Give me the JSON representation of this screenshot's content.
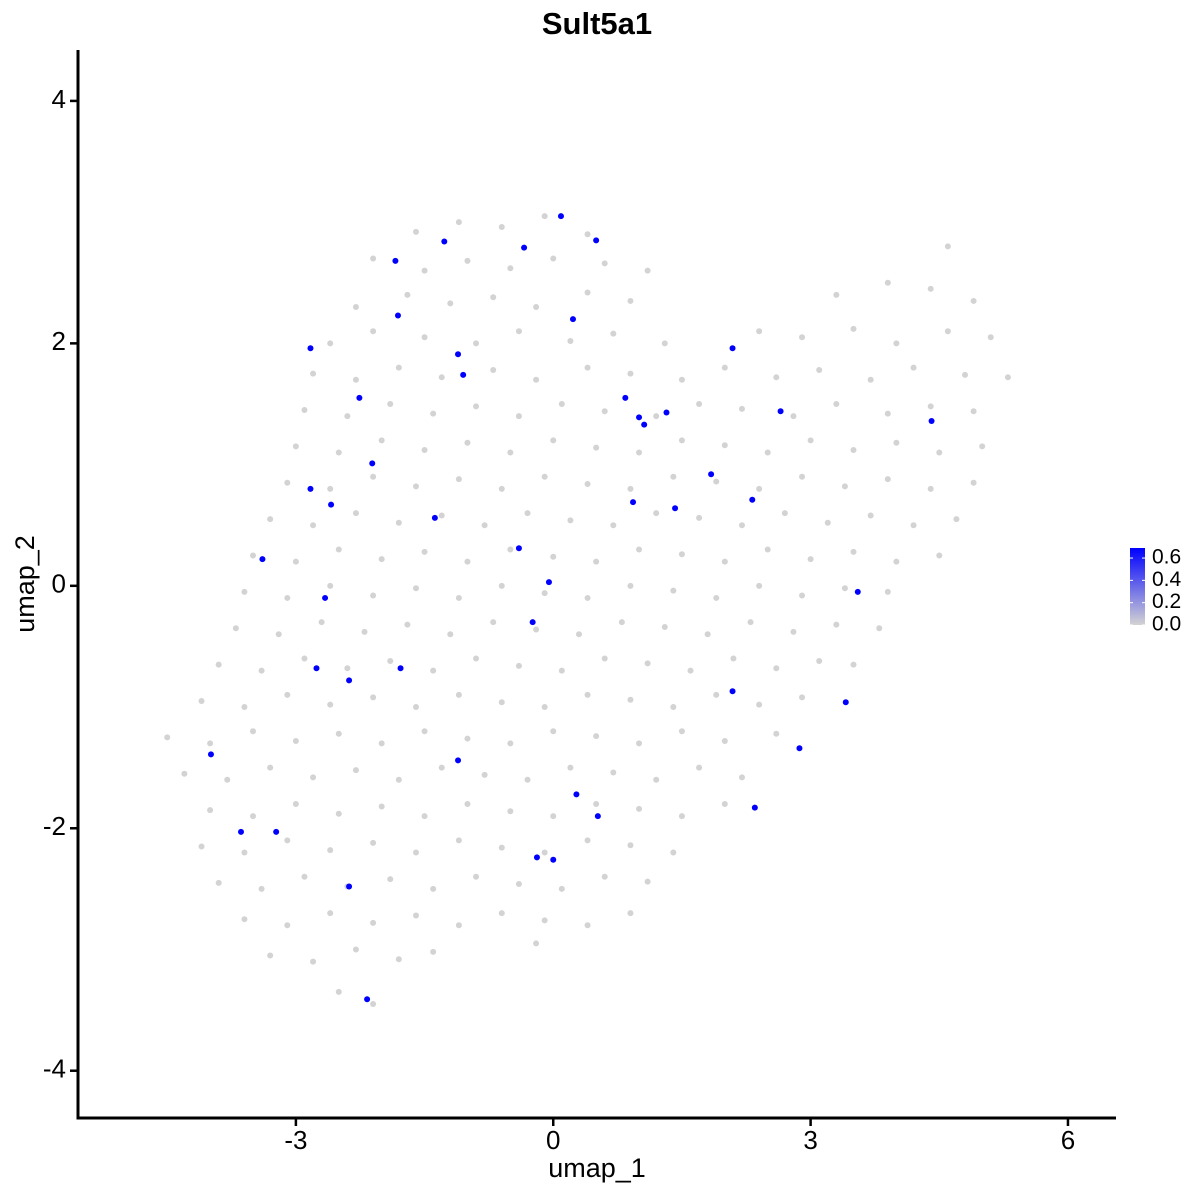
{
  "chart_data": {
    "type": "scatter",
    "title": "Sult5a1",
    "x_label": "umap_1",
    "y_label": "umap_2",
    "xlim": [
      -5.54,
      6.56
    ],
    "ylim": [
      -4.39,
      4.42
    ],
    "xticks": [
      -3,
      0,
      3,
      6
    ],
    "yticks": [
      -4,
      -2,
      0,
      2,
      4
    ],
    "color_low": "#d3d3d3",
    "color_high": "#0000ff",
    "clim": [
      0,
      0.69
    ],
    "cticks": [
      {
        "value": 0,
        "label": "0.0"
      },
      {
        "value": 0.2,
        "label": "0.2"
      },
      {
        "value": 0.4,
        "label": "0.4"
      },
      {
        "value": 0.6,
        "label": "0.6"
      }
    ],
    "x": [
      -1.6,
      -1.1,
      -0.6,
      -0.1,
      0.4,
      -2.1,
      -1.5,
      -1.0,
      -0.5,
      0.0,
      0.6,
      1.1,
      4.6,
      -2.3,
      -1.7,
      -1.2,
      -0.7,
      -0.2,
      0.4,
      0.9,
      3.3,
      3.9,
      4.4,
      4.9,
      -2.6,
      -2.1,
      -1.5,
      -0.9,
      -0.4,
      0.2,
      0.7,
      1.3,
      2.4,
      2.9,
      3.5,
      4.0,
      4.6,
      5.1,
      -2.8,
      -2.3,
      -1.8,
      -1.3,
      -0.7,
      -0.2,
      0.4,
      0.9,
      1.5,
      2.0,
      2.6,
      3.1,
      3.7,
      4.2,
      4.8,
      5.3,
      -2.9,
      -2.4,
      -1.9,
      -1.4,
      -0.9,
      -0.4,
      0.1,
      0.6,
      1.2,
      1.7,
      2.2,
      2.8,
      3.3,
      3.9,
      4.4,
      4.9,
      -3.0,
      -2.5,
      -2.0,
      -1.5,
      -1.0,
      -0.5,
      0.0,
      0.5,
      1.0,
      1.5,
      2.0,
      2.5,
      3.0,
      3.5,
      4.0,
      4.5,
      5.0,
      -3.1,
      -2.6,
      -2.1,
      -1.6,
      -1.1,
      -0.6,
      -0.1,
      0.4,
      0.9,
      1.4,
      1.9,
      2.4,
      2.9,
      3.4,
      3.9,
      4.4,
      4.9,
      -3.3,
      -2.8,
      -2.3,
      -1.8,
      -1.3,
      -0.8,
      -0.3,
      0.2,
      0.7,
      1.2,
      1.7,
      2.2,
      2.7,
      3.2,
      3.7,
      4.2,
      4.7,
      -3.5,
      -3.0,
      -2.5,
      -2.0,
      -1.5,
      -1.0,
      -0.5,
      0.0,
      0.5,
      1.0,
      1.5,
      2.0,
      2.5,
      3.0,
      3.5,
      4.0,
      4.5,
      -3.6,
      -3.1,
      -2.6,
      -2.1,
      -1.6,
      -1.1,
      -0.6,
      -0.1,
      0.4,
      0.9,
      1.4,
      1.9,
      2.4,
      2.9,
      3.4,
      3.9,
      -3.7,
      -3.2,
      -2.7,
      -2.2,
      -1.7,
      -1.2,
      -0.7,
      -0.2,
      0.3,
      0.8,
      1.3,
      1.8,
      2.3,
      2.8,
      3.3,
      3.8,
      -3.9,
      -3.4,
      -2.9,
      -2.4,
      -1.9,
      -1.4,
      -0.9,
      -0.4,
      0.1,
      0.6,
      1.1,
      1.6,
      2.1,
      2.6,
      3.1,
      3.5,
      -4.1,
      -3.6,
      -3.1,
      -2.6,
      -2.1,
      -1.6,
      -1.1,
      -0.6,
      -0.1,
      0.4,
      0.9,
      1.4,
      1.9,
      2.4,
      2.9,
      -4.5,
      -4.0,
      -3.5,
      -3.0,
      -2.5,
      -2.0,
      -1.5,
      -1.0,
      -0.5,
      0.0,
      0.5,
      1.0,
      1.5,
      2.0,
      2.6,
      -4.3,
      -3.8,
      -3.3,
      -2.8,
      -2.3,
      -1.8,
      -1.3,
      -0.8,
      -0.3,
      0.2,
      0.7,
      1.2,
      1.7,
      2.2,
      -4.0,
      -3.5,
      -3.0,
      -2.5,
      -2.0,
      -1.5,
      -1.0,
      -0.5,
      0.0,
      0.5,
      1.0,
      1.5,
      2.0,
      -4.1,
      -3.6,
      -3.1,
      -2.6,
      -2.1,
      -1.6,
      -1.1,
      -0.6,
      -0.1,
      0.4,
      0.9,
      1.4,
      -3.9,
      -3.4,
      -2.9,
      -2.4,
      -1.9,
      -1.4,
      -0.9,
      -0.4,
      0.1,
      0.6,
      1.1,
      -3.6,
      -3.1,
      -2.6,
      -2.1,
      -1.6,
      -1.1,
      -0.6,
      -0.1,
      0.4,
      0.9,
      -3.3,
      -2.8,
      -2.3,
      -1.8,
      -1.4,
      -0.2,
      -2.5,
      -2.1,
      0.09,
      -1.27,
      -0.34,
      0.5,
      -1.84,
      -1.81,
      0.23,
      -2.83,
      -1.11,
      -1.05,
      2.09,
      -2.26,
      0.84,
      1.0,
      1.06,
      1.32,
      2.65,
      4.41,
      -2.11,
      1.84,
      -2.83,
      -2.59,
      0.93,
      1.42,
      2.32,
      -1.38,
      -3.39,
      -0.4,
      -0.05,
      -2.66,
      3.55,
      -0.24,
      -2.76,
      -1.78,
      -2.38,
      2.09,
      3.41,
      -3.99,
      -1.11,
      2.87,
      0.27,
      0.52,
      2.35,
      -3.64,
      -3.23,
      -0.19,
      0.0,
      -2.38,
      -2.17
    ],
    "y": [
      2.92,
      3.0,
      2.96,
      3.05,
      2.9,
      2.7,
      2.6,
      2.68,
      2.62,
      2.7,
      2.66,
      2.6,
      2.8,
      2.3,
      2.4,
      2.33,
      2.38,
      2.3,
      2.42,
      2.35,
      2.4,
      2.5,
      2.45,
      2.35,
      2.0,
      2.1,
      2.05,
      2.0,
      2.1,
      2.02,
      2.08,
      2.0,
      2.1,
      2.05,
      2.12,
      2.0,
      2.1,
      2.05,
      1.75,
      1.7,
      1.8,
      1.72,
      1.78,
      1.7,
      1.8,
      1.75,
      1.7,
      1.8,
      1.72,
      1.78,
      1.7,
      1.8,
      1.74,
      1.72,
      1.45,
      1.4,
      1.5,
      1.42,
      1.48,
      1.4,
      1.5,
      1.44,
      1.4,
      1.5,
      1.46,
      1.4,
      1.5,
      1.42,
      1.48,
      1.44,
      1.15,
      1.1,
      1.2,
      1.12,
      1.18,
      1.1,
      1.2,
      1.14,
      1.1,
      1.2,
      1.16,
      1.1,
      1.2,
      1.12,
      1.18,
      1.1,
      1.15,
      0.85,
      0.8,
      0.9,
      0.82,
      0.88,
      0.8,
      0.9,
      0.84,
      0.8,
      0.9,
      0.86,
      0.8,
      0.9,
      0.82,
      0.88,
      0.8,
      0.85,
      0.55,
      0.5,
      0.6,
      0.52,
      0.58,
      0.5,
      0.6,
      0.54,
      0.5,
      0.6,
      0.56,
      0.5,
      0.6,
      0.52,
      0.58,
      0.5,
      0.55,
      0.25,
      0.2,
      0.3,
      0.22,
      0.28,
      0.2,
      0.3,
      0.24,
      0.2,
      0.3,
      0.26,
      0.2,
      0.3,
      0.22,
      0.28,
      0.2,
      0.25,
      -0.05,
      -0.1,
      0.0,
      -0.08,
      -0.02,
      -0.1,
      0.0,
      -0.06,
      -0.1,
      0.0,
      -0.04,
      -0.1,
      0.0,
      -0.08,
      -0.02,
      -0.05,
      -0.35,
      -0.4,
      -0.3,
      -0.38,
      -0.32,
      -0.4,
      -0.3,
      -0.36,
      -0.4,
      -0.3,
      -0.34,
      -0.4,
      -0.3,
      -0.38,
      -0.32,
      -0.35,
      -0.65,
      -0.7,
      -0.6,
      -0.68,
      -0.62,
      -0.7,
      -0.6,
      -0.66,
      -0.7,
      -0.6,
      -0.64,
      -0.7,
      -0.6,
      -0.68,
      -0.62,
      -0.65,
      -0.95,
      -1.0,
      -0.9,
      -0.98,
      -0.92,
      -1.0,
      -0.9,
      -0.96,
      -1.0,
      -0.9,
      -0.94,
      -1.0,
      -0.9,
      -0.98,
      -0.92,
      -1.25,
      -1.3,
      -1.2,
      -1.28,
      -1.22,
      -1.3,
      -1.2,
      -1.26,
      -1.3,
      -1.2,
      -1.24,
      -1.3,
      -1.2,
      -1.28,
      -1.22,
      -1.55,
      -1.6,
      -1.5,
      -1.58,
      -1.52,
      -1.6,
      -1.5,
      -1.56,
      -1.6,
      -1.5,
      -1.54,
      -1.6,
      -1.5,
      -1.58,
      -1.85,
      -1.9,
      -1.8,
      -1.88,
      -1.82,
      -1.9,
      -1.8,
      -1.86,
      -1.9,
      -1.8,
      -1.84,
      -1.9,
      -1.8,
      -2.15,
      -2.2,
      -2.1,
      -2.18,
      -2.12,
      -2.2,
      -2.1,
      -2.16,
      -2.2,
      -2.1,
      -2.14,
      -2.2,
      -2.45,
      -2.5,
      -2.4,
      -2.48,
      -2.42,
      -2.5,
      -2.4,
      -2.46,
      -2.5,
      -2.4,
      -2.44,
      -2.75,
      -2.8,
      -2.7,
      -2.78,
      -2.72,
      -2.8,
      -2.7,
      -2.76,
      -2.8,
      -2.7,
      -3.05,
      -3.1,
      -3.0,
      -3.08,
      -3.02,
      -2.95,
      -3.35,
      -3.45,
      3.05,
      2.84,
      2.79,
      2.85,
      2.68,
      2.23,
      2.2,
      1.96,
      1.91,
      1.74,
      1.96,
      1.55,
      1.55,
      1.39,
      1.33,
      1.43,
      1.44,
      1.36,
      1.01,
      0.92,
      0.8,
      0.67,
      0.69,
      0.64,
      0.71,
      0.56,
      0.22,
      0.31,
      0.03,
      -0.1,
      -0.05,
      -0.3,
      -0.68,
      -0.68,
      -0.78,
      -0.87,
      -0.96,
      -1.39,
      -1.44,
      -1.34,
      -1.72,
      -1.9,
      -1.83,
      -2.03,
      -2.03,
      -2.24,
      -2.26,
      -2.48,
      -3.41
    ],
    "values": [
      0,
      0,
      0,
      0,
      0,
      0,
      0,
      0,
      0,
      0,
      0,
      0,
      0,
      0,
      0,
      0,
      0,
      0,
      0,
      0,
      0,
      0,
      0,
      0,
      0,
      0,
      0,
      0,
      0,
      0,
      0,
      0,
      0,
      0,
      0,
      0,
      0,
      0,
      0,
      0,
      0,
      0,
      0,
      0,
      0,
      0,
      0,
      0,
      0,
      0,
      0,
      0,
      0,
      0,
      0,
      0,
      0,
      0,
      0,
      0,
      0,
      0,
      0,
      0,
      0,
      0,
      0,
      0,
      0,
      0,
      0,
      0,
      0,
      0,
      0,
      0,
      0,
      0,
      0,
      0,
      0,
      0,
      0,
      0,
      0,
      0,
      0,
      0,
      0,
      0,
      0,
      0,
      0,
      0,
      0,
      0,
      0,
      0,
      0,
      0,
      0,
      0,
      0,
      0,
      0,
      0,
      0,
      0,
      0,
      0,
      0,
      0,
      0,
      0,
      0,
      0,
      0,
      0,
      0,
      0,
      0,
      0,
      0,
      0,
      0,
      0,
      0,
      0,
      0,
      0,
      0,
      0,
      0,
      0,
      0,
      0,
      0,
      0,
      0,
      0,
      0,
      0,
      0,
      0,
      0,
      0,
      0,
      0,
      0,
      0,
      0,
      0,
      0,
      0,
      0,
      0,
      0,
      0,
      0,
      0,
      0,
      0,
      0,
      0,
      0,
      0,
      0,
      0,
      0,
      0,
      0,
      0,
      0,
      0,
      0,
      0,
      0,
      0,
      0,
      0,
      0,
      0,
      0,
      0,
      0,
      0,
      0,
      0,
      0,
      0,
      0,
      0,
      0,
      0,
      0,
      0,
      0,
      0,
      0,
      0,
      0,
      0,
      0,
      0,
      0,
      0,
      0,
      0,
      0,
      0,
      0,
      0,
      0,
      0,
      0,
      0,
      0,
      0,
      0,
      0,
      0,
      0,
      0,
      0,
      0,
      0,
      0,
      0,
      0,
      0,
      0,
      0,
      0,
      0,
      0,
      0,
      0,
      0,
      0,
      0,
      0,
      0,
      0,
      0,
      0,
      0,
      0,
      0,
      0,
      0,
      0,
      0,
      0,
      0,
      0,
      0,
      0,
      0,
      0,
      0,
      0,
      0,
      0,
      0,
      0,
      0,
      0,
      0,
      0,
      0,
      0,
      0,
      0,
      0,
      0,
      0,
      0,
      0,
      0,
      0,
      0,
      0,
      0,
      0,
      0.69,
      0.69,
      0.69,
      0.69,
      0.69,
      0.69,
      0.69,
      0.69,
      0.69,
      0.69,
      0.69,
      0.69,
      0.69,
      0.69,
      0.69,
      0.69,
      0.69,
      0.69,
      0.69,
      0.69,
      0.69,
      0.69,
      0.69,
      0.69,
      0.69,
      0.69,
      0.69,
      0.69,
      0.69,
      0.69,
      0.69,
      0.69,
      0.69,
      0.69,
      0.69,
      0.69,
      0.69,
      0.69,
      0.69,
      0.69,
      0.69,
      0.69,
      0.69,
      0.69,
      0.69,
      0.69,
      0.69,
      0.69,
      0.69
    ]
  }
}
